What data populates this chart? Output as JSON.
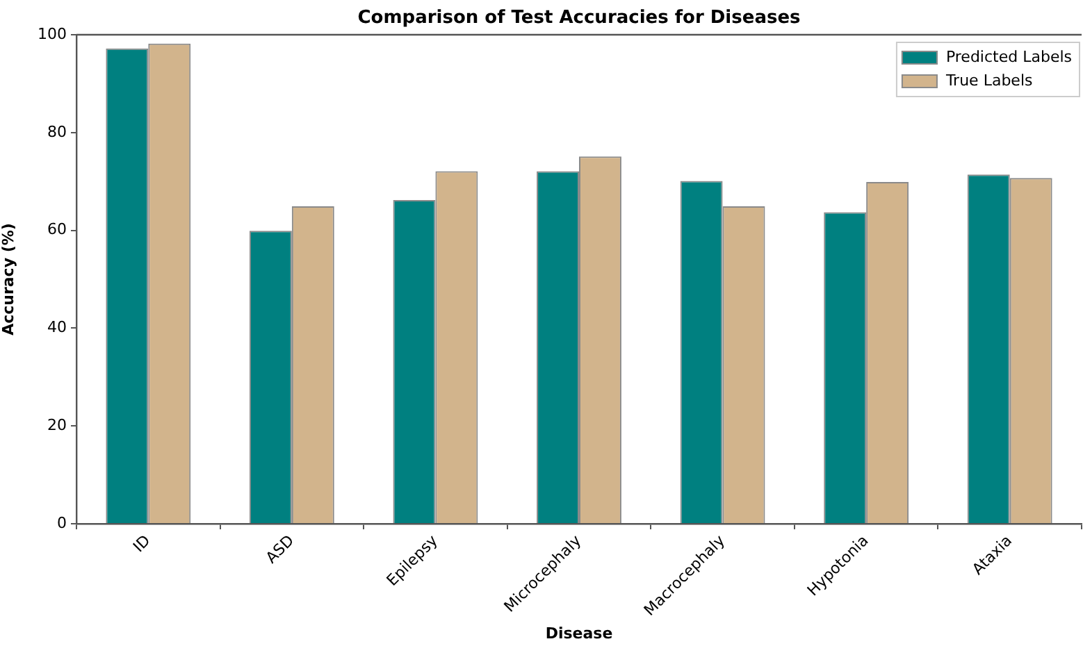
{
  "chart_data": {
    "type": "bar",
    "title": "Comparison of Test Accuracies for Diseases",
    "xlabel": "Disease",
    "ylabel": "Accuracy (%)",
    "categories": [
      "ID",
      "ASD",
      "Epilepsy",
      "Microcephaly",
      "Macrocephaly",
      "Hypotonia",
      "Ataxia"
    ],
    "series": [
      {
        "name": "Predicted Labels",
        "color": "#008080",
        "values": [
          97.2,
          59.9,
          66.2,
          72.1,
          70.1,
          63.7,
          71.4
        ]
      },
      {
        "name": "True Labels",
        "color": "#d2b48c",
        "values": [
          98.2,
          64.9,
          72.1,
          75.1,
          64.9,
          69.9,
          70.7
        ]
      }
    ],
    "ylim": [
      0,
      100
    ],
    "yticks": [
      0,
      20,
      40,
      60,
      80,
      100
    ],
    "grid": false,
    "legend": "top right"
  }
}
